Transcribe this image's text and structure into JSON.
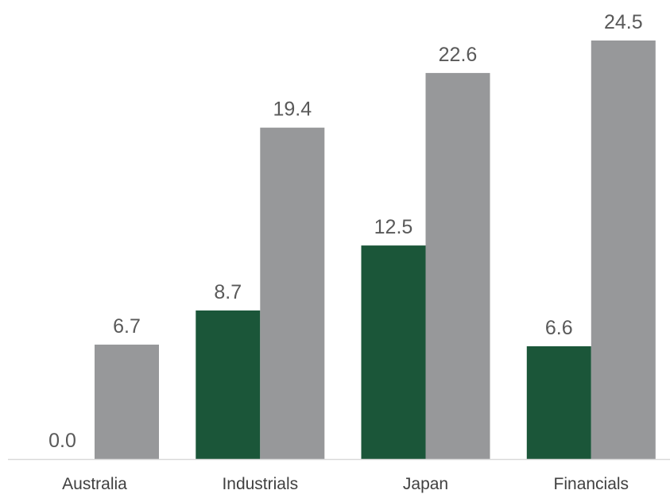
{
  "chart_data": {
    "type": "bar",
    "categories": [
      "Australia",
      "Industrials",
      "Japan",
      "Financials"
    ],
    "series": [
      {
        "values": [
          0.0,
          8.7,
          12.5,
          6.6
        ],
        "color": "#1b5639"
      },
      {
        "values": [
          6.7,
          19.4,
          22.6,
          24.5
        ],
        "color": "#97989a"
      }
    ],
    "value_labels": [
      [
        "0.0",
        "8.7",
        "12.5",
        "6.6"
      ],
      [
        "6.7",
        "19.4",
        "22.6",
        "24.5"
      ]
    ],
    "ylim": [
      0,
      24.5
    ],
    "grid": false,
    "legend": "none",
    "title": "",
    "xlabel": "",
    "ylabel": "",
    "axis_color": "#d9d9d9"
  }
}
